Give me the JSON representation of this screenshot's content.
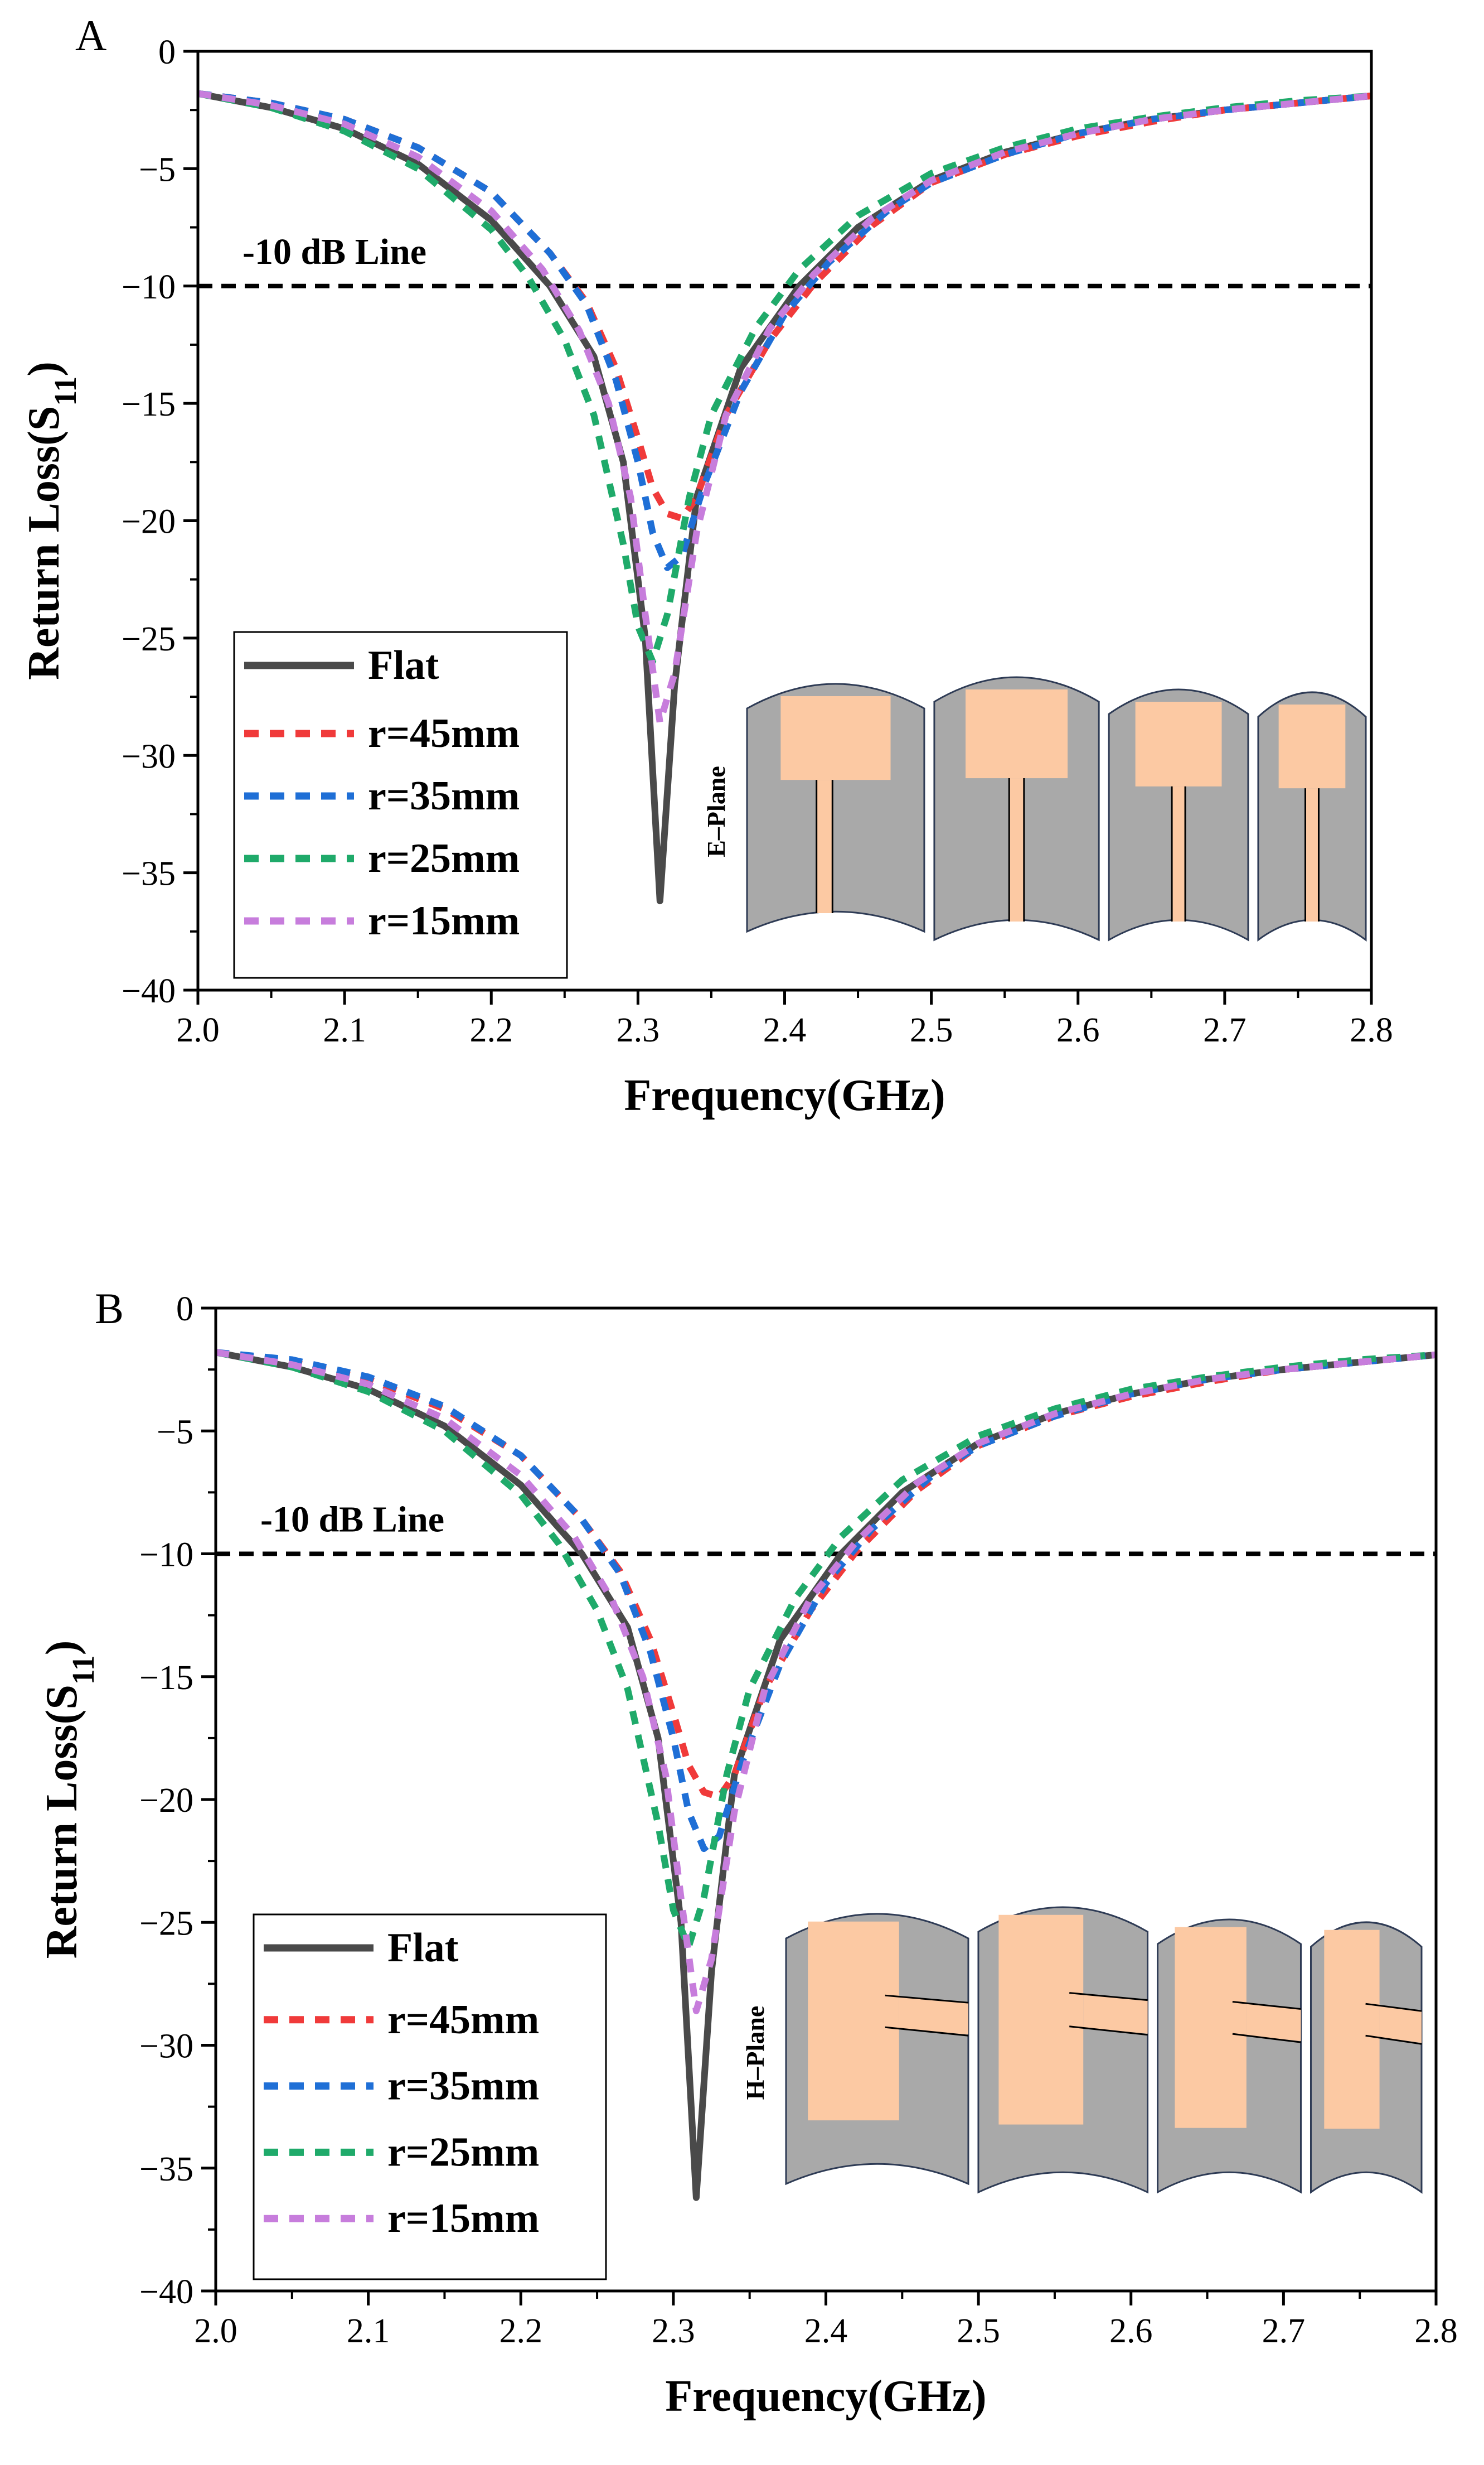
{
  "figure": {
    "panels": [
      "A",
      "B"
    ]
  },
  "series_styles": [
    {
      "name": "Flat",
      "color": "#4a4a4a",
      "dash": "solid"
    },
    {
      "name": "r=45mm",
      "color": "#f03a3a",
      "dash": "dashed"
    },
    {
      "name": "r=35mm",
      "color": "#1f6fd6",
      "dash": "dashed"
    },
    {
      "name": "r=25mm",
      "color": "#1faa6a",
      "dash": "dashed"
    },
    {
      "name": "r=15mm",
      "color": "#c77ddc",
      "dash": "dashed"
    }
  ],
  "chart_data": [
    {
      "panel_label": "A",
      "type": "line",
      "xlabel": "Frequency(GHz)",
      "ylabel_main": "Return Loss(S",
      "ylabel_sub": "11",
      "ylabel_close": ")",
      "xlim": [
        2.0,
        2.8
      ],
      "ylim": [
        -40,
        0
      ],
      "x_ticks": [
        "2.0",
        "2.1",
        "2.2",
        "2.3",
        "2.4",
        "2.5",
        "2.6",
        "2.7",
        "2.8"
      ],
      "y_ticks": [
        "0",
        "-5",
        "-10",
        "-15",
        "-20",
        "-25",
        "-30",
        "-35",
        "-40"
      ],
      "ref_line": {
        "y": -10,
        "label": "-10 dB Line"
      },
      "inset_label": "E–Plane",
      "legend": [
        "Flat",
        "r=45mm",
        "r=35mm",
        "r=25mm",
        "r=15mm"
      ],
      "series": [
        {
          "name": "Flat",
          "x": [
            2.0,
            2.05,
            2.1,
            2.15,
            2.2,
            2.24,
            2.27,
            2.29,
            2.305,
            2.315,
            2.325,
            2.34,
            2.37,
            2.41,
            2.45,
            2.5,
            2.55,
            2.6,
            2.65,
            2.7,
            2.75,
            2.8
          ],
          "y": [
            -1.8,
            -2.4,
            -3.3,
            -4.8,
            -7.2,
            -10.0,
            -13.0,
            -17.5,
            -25.0,
            -36.2,
            -27.0,
            -19.0,
            -13.5,
            -10.0,
            -7.5,
            -5.5,
            -4.3,
            -3.5,
            -2.9,
            -2.5,
            -2.2,
            -1.9
          ]
        },
        {
          "name": "r=45mm",
          "x": [
            2.0,
            2.05,
            2.1,
            2.15,
            2.2,
            2.24,
            2.265,
            2.285,
            2.3,
            2.31,
            2.32,
            2.33,
            2.34,
            2.36,
            2.39,
            2.42,
            2.46,
            2.5,
            2.55,
            2.6,
            2.65,
            2.7,
            2.75,
            2.8
          ],
          "y": [
            -1.8,
            -2.2,
            -2.9,
            -4.1,
            -6.0,
            -8.6,
            -10.7,
            -13.5,
            -16.5,
            -18.6,
            -19.7,
            -19.9,
            -19.0,
            -15.5,
            -12.3,
            -9.9,
            -7.4,
            -5.6,
            -4.4,
            -3.6,
            -3.0,
            -2.5,
            -2.2,
            -1.9
          ]
        },
        {
          "name": "r=35mm",
          "x": [
            2.0,
            2.05,
            2.1,
            2.15,
            2.2,
            2.24,
            2.265,
            2.285,
            2.3,
            2.31,
            2.32,
            2.33,
            2.345,
            2.37,
            2.4,
            2.43,
            2.47,
            2.5,
            2.55,
            2.6,
            2.65,
            2.7,
            2.75,
            2.8
          ],
          "y": [
            -1.8,
            -2.2,
            -2.9,
            -4.1,
            -6.0,
            -8.6,
            -10.8,
            -14.0,
            -17.5,
            -20.5,
            -22.0,
            -21.5,
            -18.5,
            -14.5,
            -11.2,
            -9.0,
            -6.8,
            -5.6,
            -4.4,
            -3.5,
            -2.9,
            -2.5,
            -2.2,
            -1.9
          ]
        },
        {
          "name": "r=25mm",
          "x": [
            2.0,
            2.05,
            2.1,
            2.15,
            2.2,
            2.225,
            2.25,
            2.27,
            2.29,
            2.3,
            2.31,
            2.32,
            2.335,
            2.35,
            2.38,
            2.41,
            2.45,
            2.5,
            2.55,
            2.6,
            2.65,
            2.7,
            2.75,
            2.8
          ],
          "y": [
            -1.8,
            -2.4,
            -3.4,
            -5.0,
            -7.6,
            -9.6,
            -12.3,
            -15.5,
            -21.0,
            -24.5,
            -26.0,
            -24.0,
            -19.0,
            -15.5,
            -11.8,
            -9.3,
            -7.0,
            -5.2,
            -4.1,
            -3.3,
            -2.8,
            -2.4,
            -2.1,
            -1.9
          ]
        },
        {
          "name": "r=15mm",
          "x": [
            2.0,
            2.05,
            2.1,
            2.15,
            2.2,
            2.235,
            2.26,
            2.28,
            2.295,
            2.305,
            2.315,
            2.325,
            2.34,
            2.36,
            2.39,
            2.42,
            2.46,
            2.5,
            2.55,
            2.6,
            2.65,
            2.7,
            2.75,
            2.8
          ],
          "y": [
            -1.8,
            -2.3,
            -3.1,
            -4.5,
            -6.8,
            -9.3,
            -11.9,
            -15.0,
            -19.0,
            -24.0,
            -28.6,
            -26.5,
            -20.5,
            -15.5,
            -11.8,
            -9.5,
            -7.1,
            -5.5,
            -4.3,
            -3.5,
            -2.9,
            -2.5,
            -2.2,
            -1.9
          ]
        }
      ]
    },
    {
      "panel_label": "B",
      "type": "line",
      "xlabel": "Frequency(GHz)",
      "ylabel_main": "Return Loss(S",
      "ylabel_sub": "11",
      "ylabel_close": ")",
      "xlim": [
        2.0,
        2.8
      ],
      "ylim": [
        -40,
        0
      ],
      "x_ticks": [
        "2.0",
        "2.1",
        "2.2",
        "2.3",
        "2.4",
        "2.5",
        "2.6",
        "2.7",
        "2.8"
      ],
      "y_ticks": [
        "0",
        "-5",
        "-10",
        "-15",
        "-20",
        "-25",
        "-30",
        "-35",
        "-40"
      ],
      "ref_line": {
        "y": -10,
        "label": "-10 dB Line"
      },
      "inset_label": "H–Plane",
      "legend": [
        "Flat",
        "r=45mm",
        "r=35mm",
        "r=25mm",
        "r=15mm"
      ],
      "series": [
        {
          "name": "Flat",
          "x": [
            2.0,
            2.05,
            2.1,
            2.15,
            2.2,
            2.24,
            2.27,
            2.29,
            2.305,
            2.315,
            2.325,
            2.34,
            2.37,
            2.41,
            2.45,
            2.5,
            2.55,
            2.6,
            2.65,
            2.7,
            2.75,
            2.8
          ],
          "y": [
            -1.8,
            -2.4,
            -3.3,
            -4.8,
            -7.2,
            -10.0,
            -13.0,
            -17.5,
            -25.0,
            -36.2,
            -27.0,
            -19.0,
            -13.5,
            -10.0,
            -7.5,
            -5.5,
            -4.3,
            -3.5,
            -2.9,
            -2.5,
            -2.2,
            -1.9
          ]
        },
        {
          "name": "r=45mm",
          "x": [
            2.0,
            2.05,
            2.1,
            2.15,
            2.2,
            2.24,
            2.265,
            2.285,
            2.3,
            2.31,
            2.32,
            2.33,
            2.34,
            2.36,
            2.39,
            2.42,
            2.46,
            2.5,
            2.55,
            2.6,
            2.65,
            2.7,
            2.75,
            2.8
          ],
          "y": [
            -1.8,
            -2.2,
            -2.9,
            -4.1,
            -6.0,
            -8.6,
            -10.7,
            -13.5,
            -16.5,
            -18.6,
            -19.7,
            -19.9,
            -19.0,
            -15.5,
            -12.3,
            -9.9,
            -7.4,
            -5.6,
            -4.4,
            -3.6,
            -3.0,
            -2.5,
            -2.2,
            -1.9
          ]
        },
        {
          "name": "r=35mm",
          "x": [
            2.0,
            2.05,
            2.1,
            2.15,
            2.2,
            2.24,
            2.265,
            2.285,
            2.3,
            2.31,
            2.32,
            2.33,
            2.345,
            2.37,
            2.4,
            2.43,
            2.47,
            2.5,
            2.55,
            2.6,
            2.65,
            2.7,
            2.75,
            2.8
          ],
          "y": [
            -1.8,
            -2.1,
            -2.8,
            -4.0,
            -6.0,
            -8.6,
            -10.8,
            -14.0,
            -17.5,
            -20.5,
            -22.0,
            -21.5,
            -18.5,
            -14.5,
            -11.2,
            -9.0,
            -6.8,
            -5.6,
            -4.4,
            -3.5,
            -2.9,
            -2.5,
            -2.2,
            -1.9
          ]
        },
        {
          "name": "r=25mm",
          "x": [
            2.0,
            2.05,
            2.1,
            2.15,
            2.2,
            2.225,
            2.25,
            2.27,
            2.29,
            2.3,
            2.31,
            2.32,
            2.335,
            2.35,
            2.38,
            2.41,
            2.45,
            2.5,
            2.55,
            2.6,
            2.65,
            2.7,
            2.75,
            2.8
          ],
          "y": [
            -1.8,
            -2.4,
            -3.4,
            -5.0,
            -7.6,
            -9.6,
            -12.3,
            -15.5,
            -21.0,
            -24.5,
            -26.0,
            -24.0,
            -19.0,
            -15.5,
            -11.8,
            -9.3,
            -7.0,
            -5.2,
            -4.1,
            -3.3,
            -2.8,
            -2.4,
            -2.1,
            -1.9
          ]
        },
        {
          "name": "r=15mm",
          "x": [
            2.0,
            2.05,
            2.1,
            2.15,
            2.2,
            2.235,
            2.26,
            2.28,
            2.295,
            2.305,
            2.315,
            2.325,
            2.34,
            2.36,
            2.39,
            2.42,
            2.46,
            2.5,
            2.55,
            2.6,
            2.65,
            2.7,
            2.75,
            2.8
          ],
          "y": [
            -1.8,
            -2.3,
            -3.1,
            -4.5,
            -6.8,
            -9.3,
            -11.9,
            -15.0,
            -19.0,
            -24.0,
            -28.6,
            -26.5,
            -20.5,
            -15.5,
            -11.8,
            -9.5,
            -7.1,
            -5.5,
            -4.3,
            -3.5,
            -2.9,
            -2.5,
            -2.2,
            -1.9
          ]
        }
      ]
    }
  ]
}
